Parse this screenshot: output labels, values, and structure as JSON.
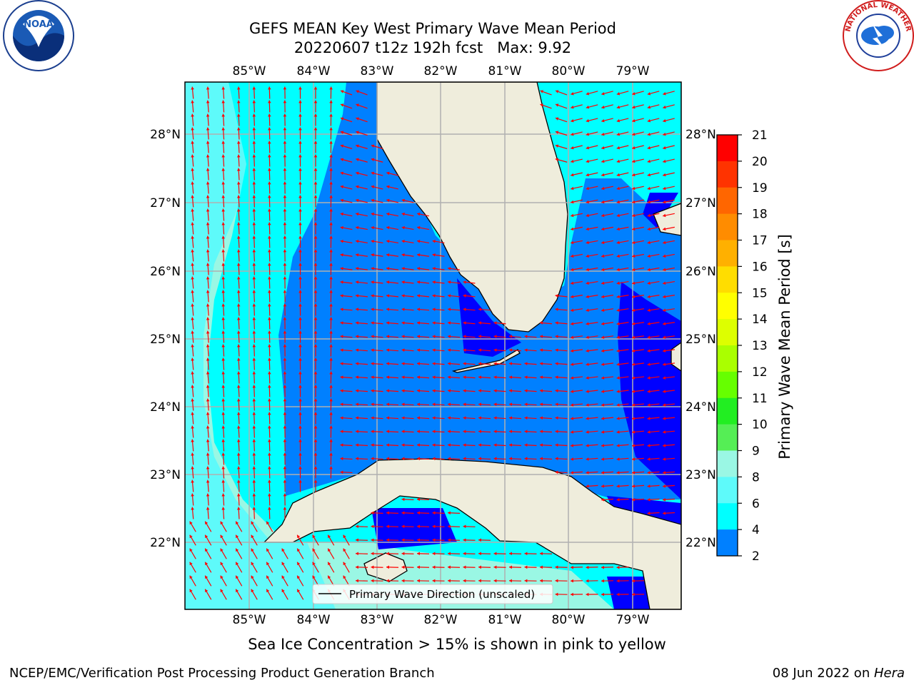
{
  "title": {
    "line1": "GEFS MEAN Key West Primary Wave Mean Period",
    "line2": "20220607 t12z 192h fcst   Max: 9.92"
  },
  "map": {
    "lon_labels": [
      "85°W",
      "84°W",
      "83°W",
      "82°W",
      "81°W",
      "80°W",
      "79°W"
    ],
    "lat_labels": [
      "28°N",
      "27°N",
      "26°N",
      "25°N",
      "24°N",
      "23°N",
      "22°N"
    ],
    "colors": {
      "land": "#efeddc",
      "band_2_4": "#0000ff",
      "band_4_6": "#0080ff",
      "band_6_8": "#00ffff",
      "band_8_9": "#5efafa",
      "band_9_10": "#9af7e4",
      "arrow": "#ff0000",
      "grid": "#b0b0b0"
    },
    "legend_label": "Primary Wave Direction (unscaled)"
  },
  "colorbar": {
    "label": "Primary Wave Mean Period [s]",
    "ticks": [
      "21",
      "20",
      "19",
      "18",
      "17",
      "16",
      "15",
      "14",
      "13",
      "12",
      "11",
      "10",
      "9",
      "8",
      "6",
      "4",
      "2"
    ],
    "colors": [
      "#ff0000",
      "#ff3300",
      "#ff6600",
      "#ff8c00",
      "#ffb000",
      "#ffdd00",
      "#ffff00",
      "#ddff00",
      "#aaff00",
      "#66ff00",
      "#22ee22",
      "#55ee55",
      "#9af7e4",
      "#5efafa",
      "#00ffff",
      "#0080ff",
      "#0000ff"
    ]
  },
  "footer": {
    "ice_note": "Sea Ice Concentration > 15% is shown in pink to yellow",
    "credits": "NCEP/EMC/Verification Post Processing Product Generation Branch",
    "date": "08 Jun 2022 on ",
    "host": "Hera"
  },
  "logos": {
    "noaa": "NOAA",
    "nws": "NATIONAL WEATHER SERVICE"
  }
}
